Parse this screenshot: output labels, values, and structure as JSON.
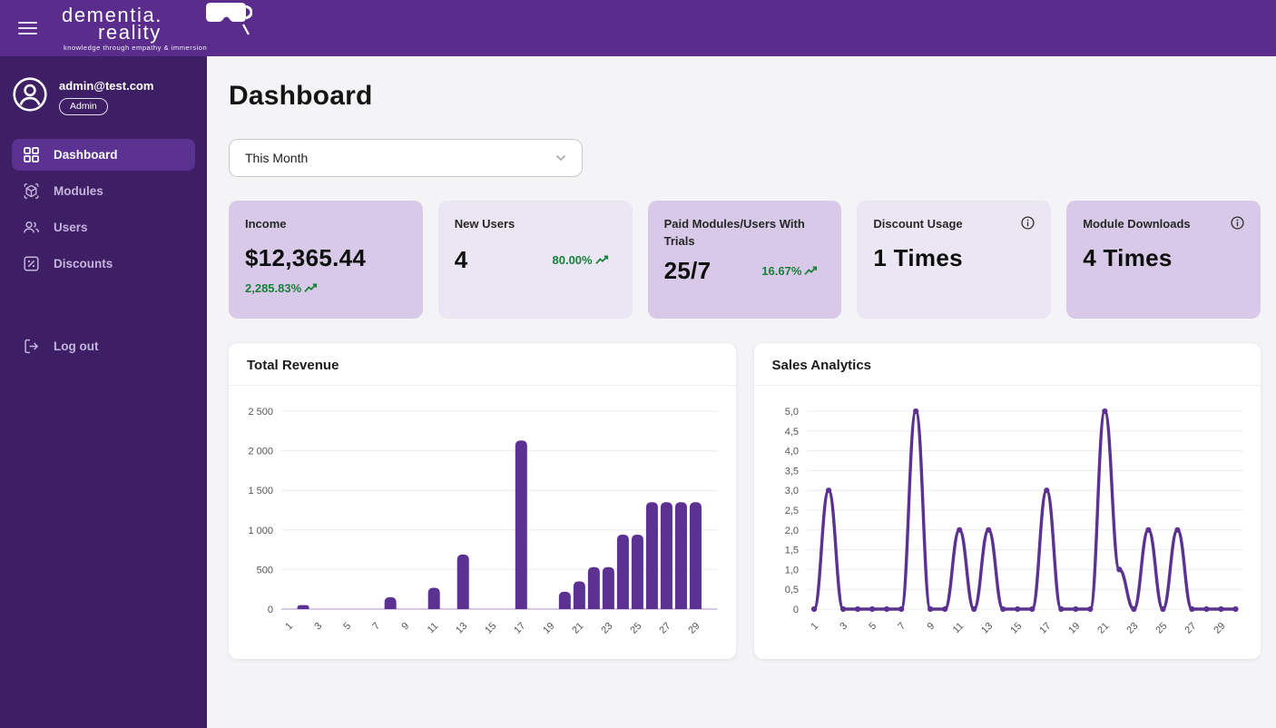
{
  "topbar": {
    "logo": {
      "line1": "dementia.",
      "line2": "reality",
      "tagline": "knowledge through empathy & immersion",
      "icon": "vr-headset-icon"
    },
    "menu_icon": "hamburger-icon"
  },
  "sidebar": {
    "user": {
      "email": "admin@test.com",
      "role": "Admin",
      "icon": "account-circle-icon"
    },
    "items": [
      {
        "label": "Dashboard",
        "icon": "dashboard-icon",
        "active": true
      },
      {
        "label": "Modules",
        "icon": "cube-icon",
        "active": false
      },
      {
        "label": "Users",
        "icon": "users-icon",
        "active": false
      },
      {
        "label": "Discounts",
        "icon": "percent-icon",
        "active": false
      }
    ],
    "logout": {
      "label": "Log out",
      "icon": "logout-icon"
    }
  },
  "main": {
    "title": "Dashboard",
    "period_selector": {
      "value": "This Month",
      "icon": "chevron-down-icon"
    },
    "stat_cards": [
      {
        "title": "Income",
        "value": "$12,365.44",
        "change": "2,285.83%",
        "trend_icon": "trending-up-icon",
        "tone": "dark"
      },
      {
        "title": "New Users",
        "value": "4",
        "change": "80.00%",
        "trend_icon": "trending-up-icon",
        "tone": "light"
      },
      {
        "title": "Paid Modules/Users With Trials",
        "value": "25/7",
        "change": "16.67%",
        "trend_icon": "trending-up-icon",
        "tone": "dark"
      },
      {
        "title": "Discount Usage",
        "value": "1 Times",
        "info_icon": "info-icon",
        "tone": "light"
      },
      {
        "title": "Module Downloads",
        "value": "4 Times",
        "info_icon": "info-icon",
        "tone": "dark"
      }
    ]
  },
  "colors": {
    "topbar": "#5a2d8c",
    "sidebar": "#3e1f66",
    "active_item": "#5b3191",
    "card_dark": "#d7c9e7",
    "card_light": "#ebe6f3",
    "positive_green": "#188038",
    "chart_purple": "#5b3192",
    "gridline": "#ececec",
    "main_bg": "#f4f4f6"
  },
  "chart_data": [
    {
      "type": "bar",
      "title": "Total Revenue",
      "x": [
        1,
        2,
        3,
        4,
        5,
        6,
        7,
        8,
        9,
        10,
        11,
        12,
        13,
        14,
        15,
        16,
        17,
        18,
        19,
        20,
        21,
        22,
        23,
        24,
        25,
        26,
        27,
        28,
        29,
        30
      ],
      "values": [
        0,
        50,
        0,
        0,
        0,
        0,
        0,
        150,
        0,
        0,
        270,
        0,
        690,
        0,
        0,
        0,
        2130,
        0,
        0,
        220,
        350,
        530,
        530,
        940,
        940,
        1350,
        1350,
        1350,
        1350,
        0
      ],
      "xlabel": "",
      "ylabel": "",
      "ylim": [
        0,
        2500
      ],
      "ytick_labels": [
        "0",
        "500",
        "1 000",
        "1 500",
        "2 000",
        "2 500"
      ],
      "xtick_labels": [
        "1",
        "3",
        "5",
        "7",
        "9",
        "11",
        "13",
        "15",
        "17",
        "19",
        "21",
        "23",
        "25",
        "27",
        "29"
      ],
      "grid": true,
      "legend": "none",
      "color": "#5b3192"
    },
    {
      "type": "line",
      "title": "Sales Analytics",
      "x": [
        1,
        2,
        3,
        4,
        5,
        6,
        7,
        8,
        9,
        10,
        11,
        12,
        13,
        14,
        15,
        16,
        17,
        18,
        19,
        20,
        21,
        22,
        23,
        24,
        25,
        26,
        27,
        28,
        29,
        30
      ],
      "values": [
        0,
        3,
        0,
        0,
        0,
        0,
        0,
        5,
        0,
        0,
        2,
        0,
        2,
        0,
        0,
        0,
        3,
        0,
        0,
        0,
        5,
        1,
        0,
        2,
        0,
        2,
        0,
        0,
        0,
        0
      ],
      "xlabel": "",
      "ylabel": "",
      "ylim": [
        0,
        5
      ],
      "ytick_labels": [
        "0",
        "0,5",
        "1,0",
        "1,5",
        "2,0",
        "2,5",
        "3,0",
        "3,5",
        "4,0",
        "4,5",
        "5,0"
      ],
      "xtick_labels": [
        "1",
        "3",
        "5",
        "7",
        "9",
        "11",
        "13",
        "15",
        "17",
        "19",
        "21",
        "23",
        "25",
        "27",
        "29"
      ],
      "grid": true,
      "legend": "none",
      "markers": true,
      "color": "#5b3192"
    }
  ]
}
